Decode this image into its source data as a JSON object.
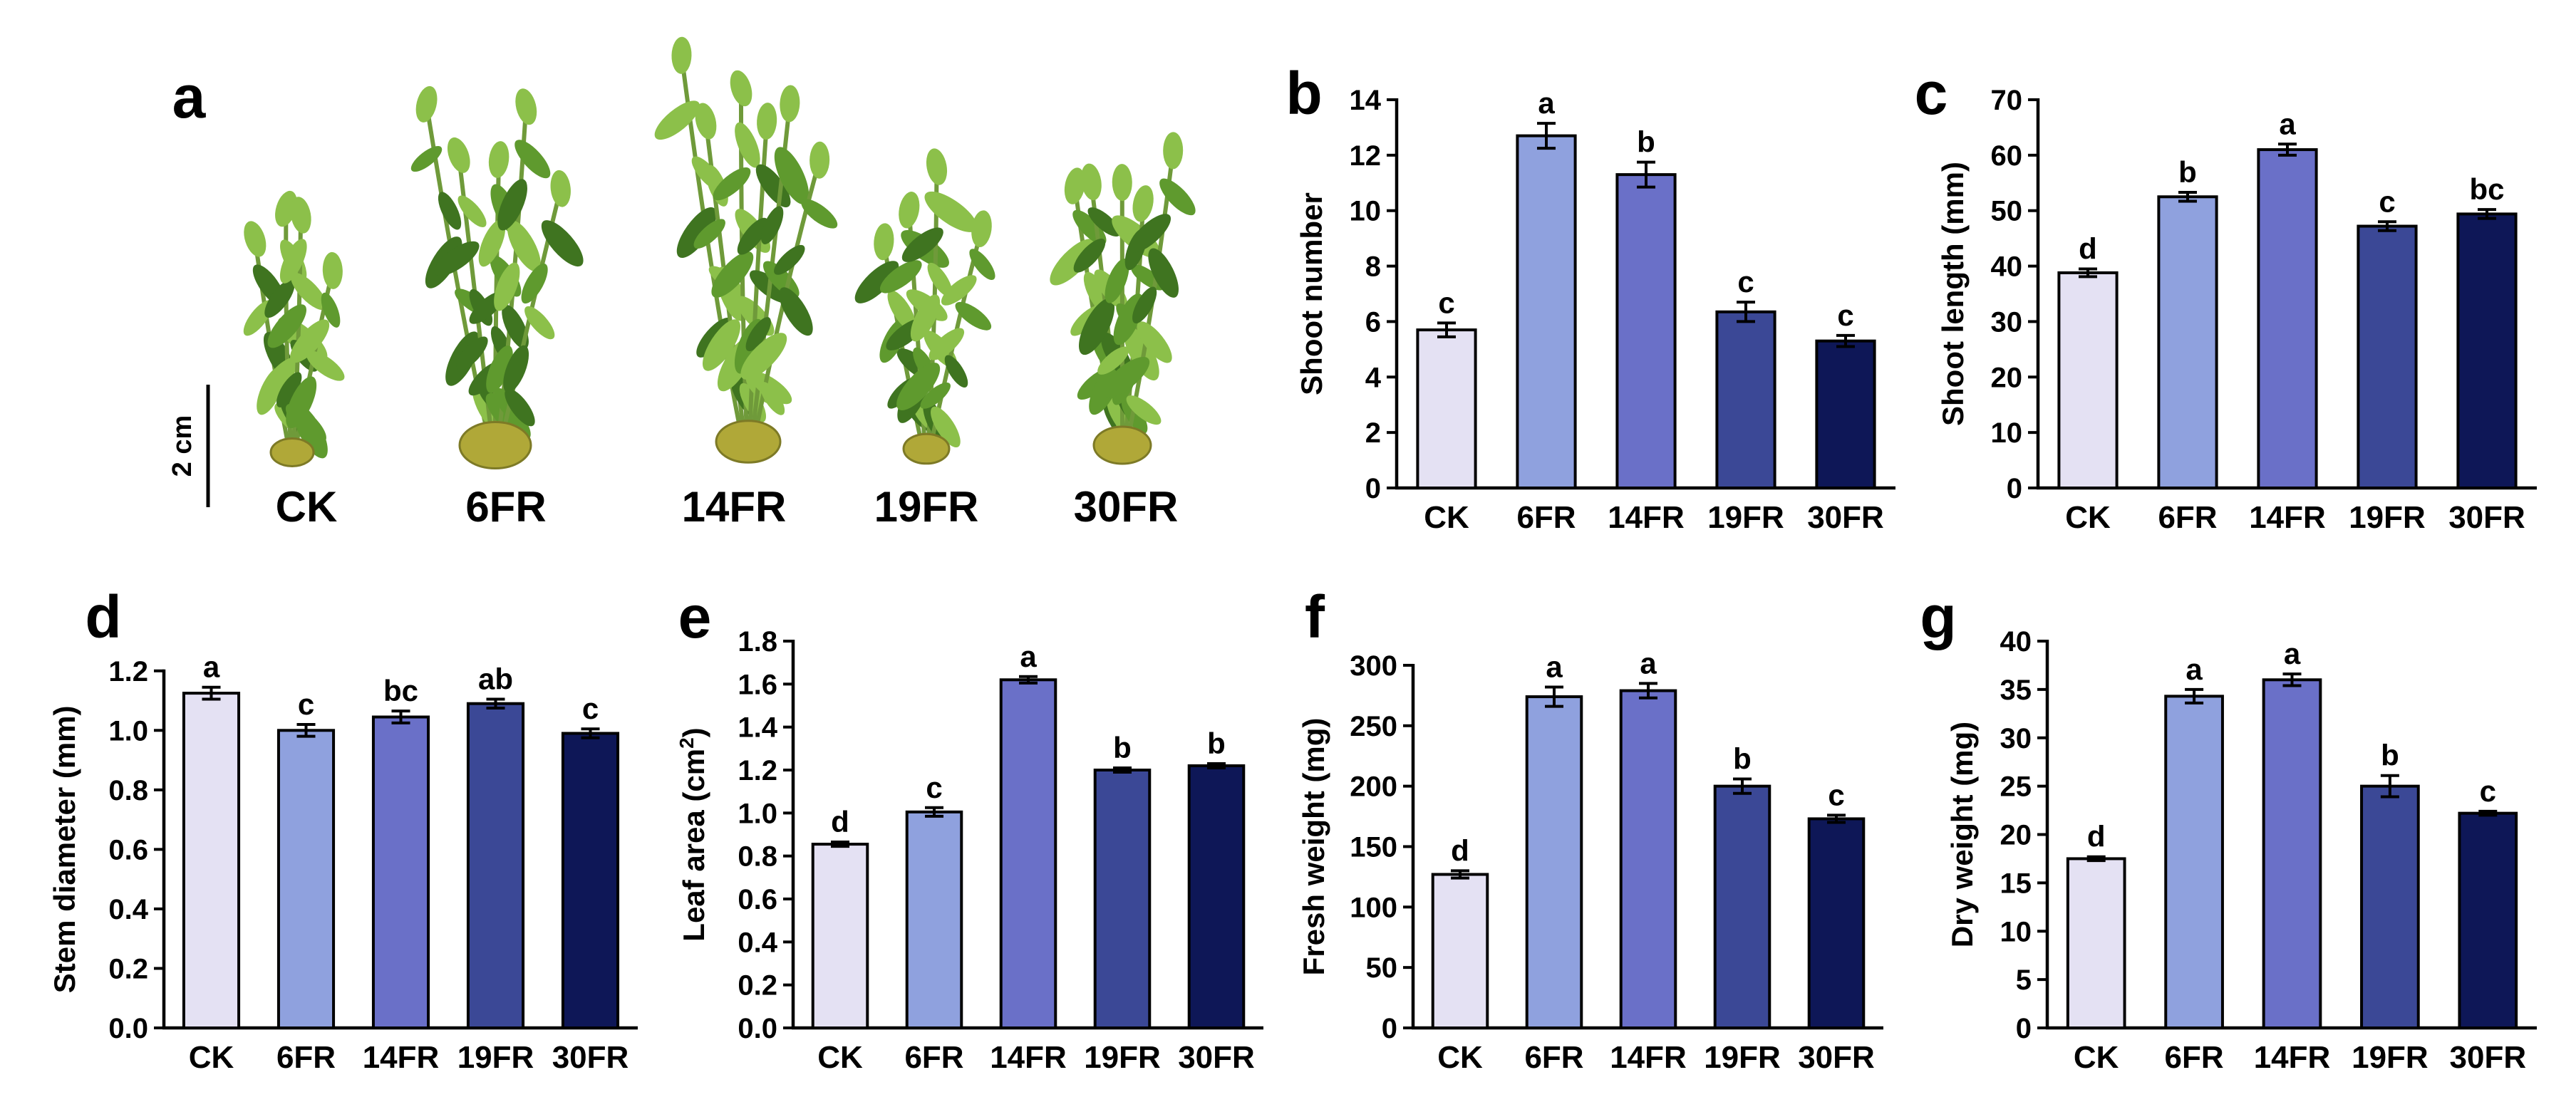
{
  "panel_a": {
    "letter": "a",
    "scale_bar_label": "2 cm",
    "labels": [
      "CK",
      "6FR",
      "14FR",
      "19FR",
      "30FR"
    ],
    "colors": {
      "leaf": "#5f9a2e",
      "leaf_dark": "#3f7420",
      "leaf_light": "#8cc04a",
      "stem": "#6f9a3a",
      "base": "#b0a838"
    }
  },
  "categories": [
    "CK",
    "6FR",
    "14FR",
    "19FR",
    "30FR"
  ],
  "bar_colors": [
    "#e4e1f3",
    "#8fa1de",
    "#6a70c8",
    "#3b4896",
    "#0e1757"
  ],
  "chart_data": [
    {
      "id": "b",
      "letter": "b",
      "type": "bar",
      "ylabel": "Shoot number",
      "ylim": [
        0,
        14
      ],
      "ticks": [
        "0",
        "2",
        "4",
        "6",
        "8",
        "10",
        "12",
        "14"
      ],
      "values": [
        5.7,
        12.7,
        11.3,
        6.35,
        5.3
      ],
      "errors": [
        0.25,
        0.45,
        0.45,
        0.35,
        0.2
      ],
      "letters": [
        "c",
        "a",
        "b",
        "c",
        "c"
      ]
    },
    {
      "id": "c",
      "letter": "c",
      "type": "bar",
      "ylabel": "Shoot length (mm)",
      "ylim": [
        0,
        70
      ],
      "ticks": [
        "0",
        "10",
        "20",
        "30",
        "40",
        "50",
        "60",
        "70"
      ],
      "values": [
        38.8,
        52.5,
        61.0,
        47.2,
        49.4
      ],
      "errors": [
        0.7,
        0.8,
        1.0,
        0.8,
        0.8
      ],
      "letters": [
        "d",
        "b",
        "a",
        "c",
        "bc"
      ]
    },
    {
      "id": "d",
      "letter": "d",
      "type": "bar",
      "ylabel": "Stem diameter (mm)",
      "ylim": [
        0,
        1.3
      ],
      "ticks": [
        "0.0",
        "0.2",
        "0.4",
        "0.6",
        "0.8",
        "1.0",
        "1.2"
      ],
      "values": [
        1.125,
        1.0,
        1.045,
        1.09,
        0.99
      ],
      "errors": [
        0.02,
        0.02,
        0.02,
        0.015,
        0.015
      ],
      "letters": [
        "a",
        "c",
        "bc",
        "ab",
        "c"
      ]
    },
    {
      "id": "e",
      "letter": "e",
      "type": "bar",
      "ylabel": "Leaf area (cm",
      "ylabel_sup": "2",
      "ylabel_end": ")",
      "ylim": [
        0,
        1.8
      ],
      "ticks": [
        "0.0",
        "0.2",
        "0.4",
        "0.6",
        "0.8",
        "1.0",
        "1.2",
        "1.4",
        "1.6",
        "1.8"
      ],
      "values": [
        0.855,
        1.005,
        1.62,
        1.2,
        1.22
      ],
      "errors": [
        0.01,
        0.02,
        0.015,
        0.01,
        0.01
      ],
      "letters": [
        "d",
        "c",
        "a",
        "b",
        "b"
      ]
    },
    {
      "id": "f",
      "letter": "f",
      "type": "bar",
      "ylabel": "Fresh weight (mg)",
      "ylim": [
        0,
        320
      ],
      "ticks": [
        "0",
        "50",
        "100",
        "150",
        "200",
        "250",
        "300"
      ],
      "values": [
        127,
        274,
        279,
        200,
        173
      ],
      "errors": [
        3,
        8,
        6,
        6,
        3
      ],
      "letters": [
        "d",
        "a",
        "a",
        "b",
        "c"
      ]
    },
    {
      "id": "g",
      "letter": "g",
      "type": "bar",
      "ylabel": "Dry weight (mg)",
      "ylim": [
        0,
        40
      ],
      "ticks": [
        "0",
        "5",
        "10",
        "15",
        "20",
        "25",
        "30",
        "35",
        "40"
      ],
      "values": [
        17.5,
        34.3,
        36.0,
        25.0,
        22.2
      ],
      "errors": [
        0.2,
        0.7,
        0.6,
        1.1,
        0.2
      ],
      "letters": [
        "d",
        "a",
        "a",
        "b",
        "c"
      ]
    }
  ]
}
